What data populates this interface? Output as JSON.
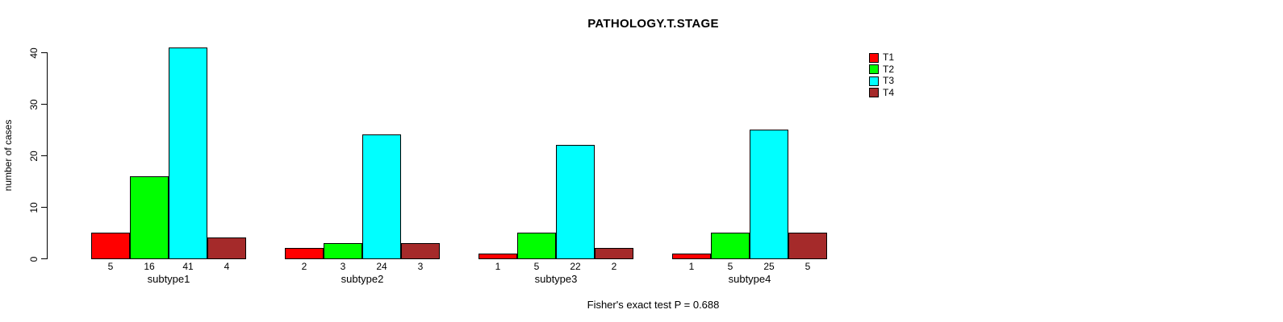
{
  "chart_data": {
    "type": "bar",
    "title": "PATHOLOGY.T.STAGE",
    "ylabel": "number of cases",
    "xlabel": "",
    "ylim": [
      0,
      40
    ],
    "yticks": [
      0,
      10,
      20,
      30,
      40
    ],
    "categories": [
      "subtype1",
      "subtype2",
      "subtype3",
      "subtype4"
    ],
    "series": [
      {
        "name": "T1",
        "color": "#FF0000",
        "values": [
          5,
          2,
          1,
          1
        ]
      },
      {
        "name": "T2",
        "color": "#00FF00",
        "values": [
          16,
          3,
          5,
          5
        ]
      },
      {
        "name": "T3",
        "color": "#00FFFF",
        "values": [
          41,
          24,
          22,
          25
        ]
      },
      {
        "name": "T4",
        "color": "#A52A2A",
        "values": [
          4,
          3,
          2,
          5
        ]
      }
    ],
    "value_labels_shown": true,
    "grid": false,
    "legend_position": "top-right",
    "footer": "Fisher's exact test P = 0.688"
  }
}
